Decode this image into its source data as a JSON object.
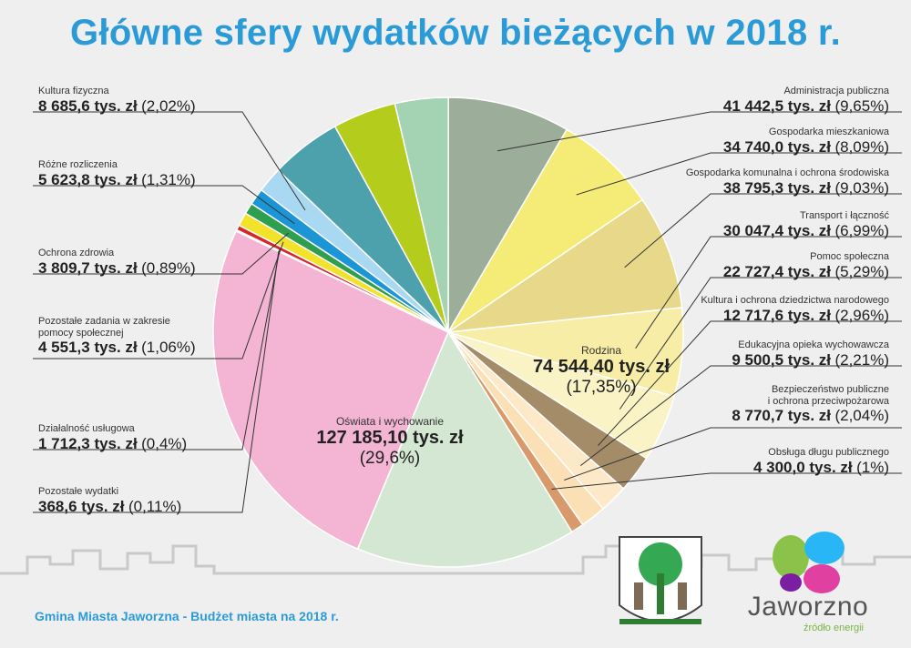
{
  "title": "Główne sfery wydatków bieżących w 2018 r.",
  "footer": "Gmina Miasta Jaworzna - Budżet miasta na 2018 r.",
  "brand": {
    "name": "Jaworzno",
    "tagline": "źródło energii"
  },
  "chart_data": {
    "type": "pie",
    "title": "Główne sfery wydatków bieżących w 2018 r.",
    "slices": [
      {
        "label": "Administracja publiczna",
        "value": "41 442,5 tys. zł",
        "percent": "(9,65%)",
        "share": 9.65,
        "color": "#9cad9a"
      },
      {
        "label": "Gospodarka mieszkaniowa",
        "value": "34 740,0 tys. zł",
        "percent": "(8,09%)",
        "share": 8.09,
        "color": "#f5ec78"
      },
      {
        "label": "Gospodarka komunalna i ochrona środowiska",
        "value": "38 795,3 tys. zł",
        "percent": "(9,03%)",
        "share": 9.03,
        "color": "#e7d989"
      },
      {
        "label": "Transport i łączność",
        "value": "30 047,4 tys. zł",
        "percent": "(6,99%)",
        "share": 6.99,
        "color": "#f7eda6"
      },
      {
        "label": "Pomoc społeczna",
        "value": "22 727,4 tys. zł",
        "percent": "(5,29%)",
        "share": 5.29,
        "color": "#faf3c6"
      },
      {
        "label": "Kultura i ochrona dziedzictwa narodowego",
        "value": "12 717,6 tys. zł",
        "percent": "(2,96%)",
        "share": 2.96,
        "color": "#a58c68"
      },
      {
        "label": "Edukacyjna opieka wychowawcza",
        "value": "9 500,5 tys. zł",
        "percent": "(2,21%)",
        "share": 2.21,
        "color": "#fde9c7"
      },
      {
        "label": "Bezpieczeństwo publiczne\ni ochrona przeciwpożarowa",
        "value": "8 770,7 tys. zł",
        "percent": "(2,04%)",
        "share": 2.04,
        "color": "#fbe0b5"
      },
      {
        "label": "Obsługa długu publicznego",
        "value": "4 300,0 tys. zł",
        "percent": "(1%)",
        "share": 1.0,
        "color": "#d89a6a"
      },
      {
        "label": "Rodzina",
        "value": "74 544,40 tys. zł",
        "percent": "(17,35%)",
        "share": 17.35,
        "color": "#d4e7d2"
      },
      {
        "label": "Oświata i wychowanie",
        "value": "127 185,10 tys. zł",
        "percent": "(29,6%)",
        "share": 29.6,
        "color": "#f3b5d3"
      },
      {
        "label": "Pozostałe wydatki",
        "value": "368,6 tys. zł",
        "percent": "(0,11%)",
        "share": 0.11,
        "color": "#c21e5b"
      },
      {
        "label": "Działalność usługowa",
        "value": "1 712,3 tys. zł",
        "percent": "(0,4%)",
        "share": 0.4,
        "color": "#d9242b"
      },
      {
        "label": "Pozostałe zadania w zakresie\npomocy społecznej",
        "value": "4 551,3 tys. zł",
        "percent": "(1,06%)",
        "share": 1.06,
        "color": "#f2e32a"
      },
      {
        "label": "Ochrona zdrowia",
        "value": "3 809,7 tys. zł",
        "percent": "(0,89%)",
        "share": 0.89,
        "color": "#2e9e4f"
      },
      {
        "label": "Różne rozliczenia",
        "value": "5 623,8 tys. zł",
        "percent": "(1,31%)",
        "share": 1.31,
        "color": "#1c95d6"
      },
      {
        "label": "Kultura fizyczna",
        "value": "8 685,6 tys. zł",
        "percent": "(2,02%)",
        "share": 2.02,
        "color": "#a9d8f2"
      },
      {
        "label": "Unlabeled (teal)",
        "value": "",
        "percent": "",
        "share": 5.6,
        "color": "#4da1ac"
      },
      {
        "label": "Unlabeled (lime)",
        "value": "",
        "percent": "",
        "share": 5.0,
        "color": "#b4cc1c"
      },
      {
        "label": "Unlabeled (mint)",
        "value": "",
        "percent": "",
        "share": 4.2,
        "color": "#a4d3b3"
      }
    ]
  }
}
